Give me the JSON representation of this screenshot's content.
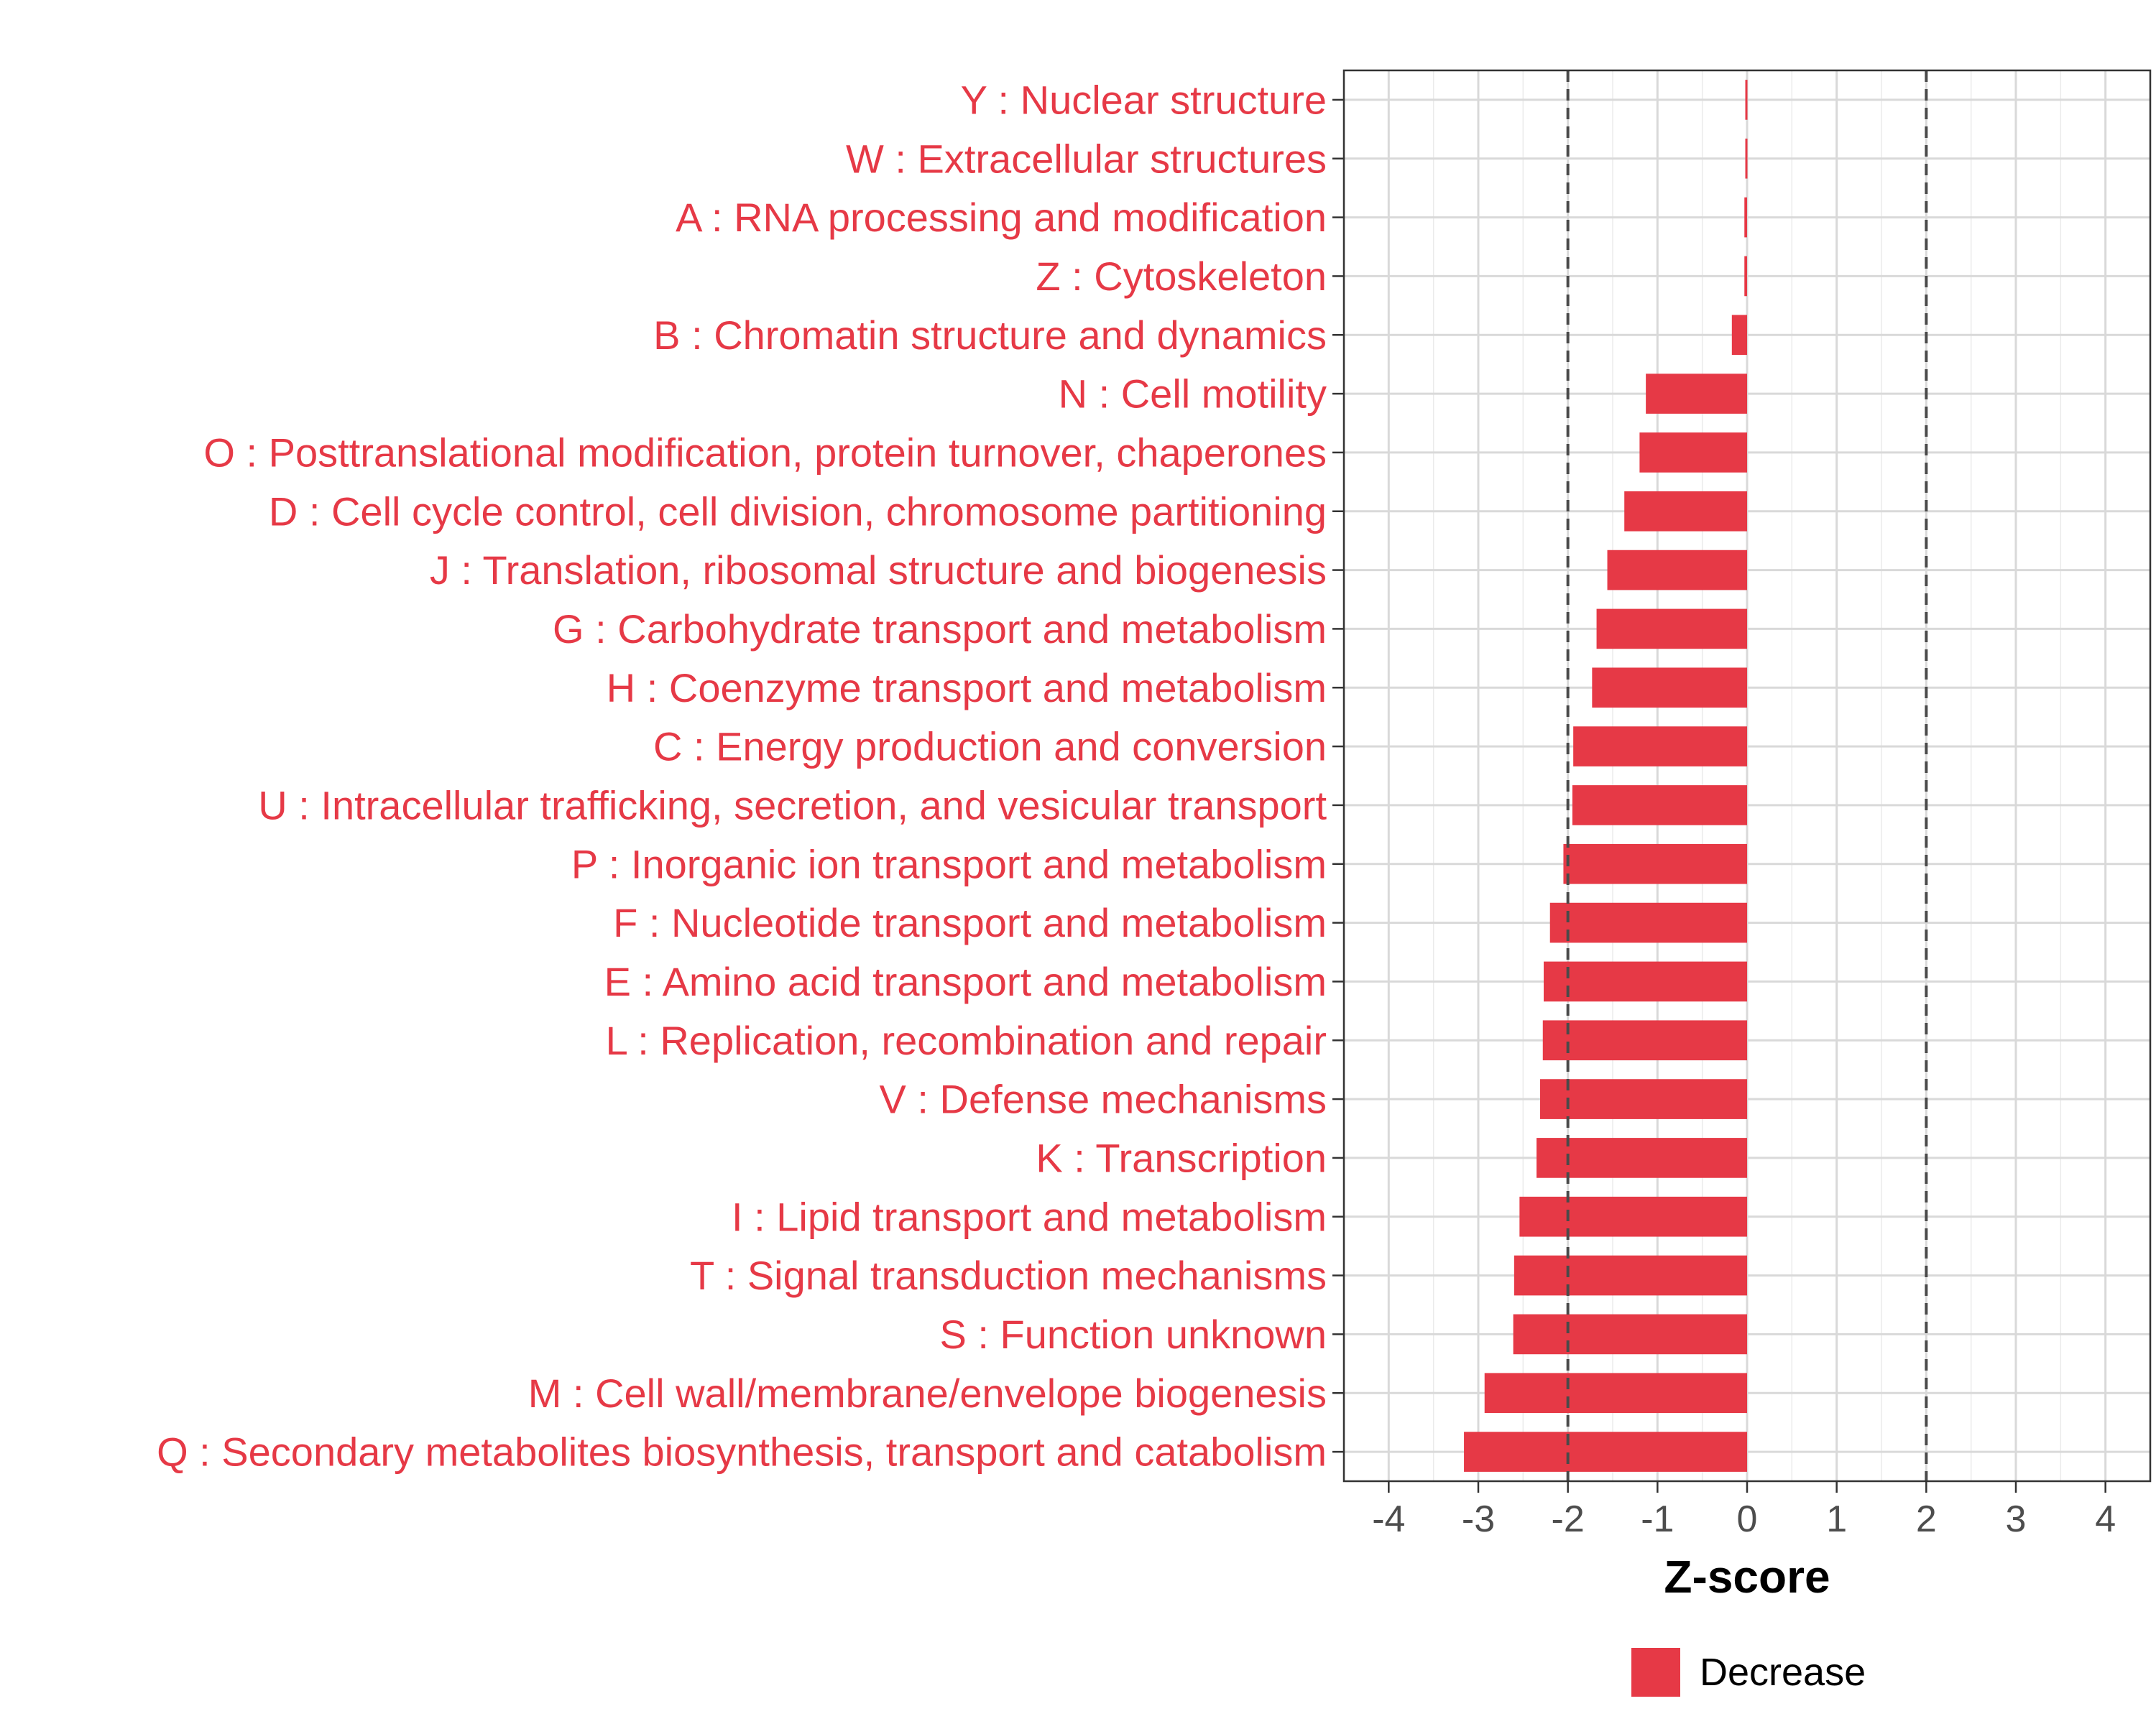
{
  "chart_data": {
    "type": "bar",
    "orientation": "horizontal",
    "categories": [
      "Y : Nuclear structure",
      "W : Extracellular structures",
      "A : RNA processing and modification",
      "Z : Cytoskeleton",
      "B : Chromatin structure and dynamics",
      "N : Cell motility",
      "O : Posttranslational modification, protein turnover, chaperones",
      "D : Cell cycle control, cell division, chromosome partitioning",
      "J : Translation, ribosomal structure and biogenesis",
      "G : Carbohydrate transport and metabolism",
      "H : Coenzyme transport and metabolism",
      "C : Energy production and conversion",
      "U : Intracellular trafficking, secretion, and vesicular transport",
      "P : Inorganic ion transport and metabolism",
      "F : Nucleotide transport and metabolism",
      "E : Amino acid transport and metabolism",
      "L : Replication, recombination and repair",
      "V : Defense mechanisms",
      "K : Transcription",
      "I : Lipid transport and metabolism",
      "T : Signal transduction mechanisms",
      "S : Function unknown",
      "M : Cell wall/membrane/envelope biogenesis",
      "Q : Secondary metabolites biosynthesis, transport and catabolism"
    ],
    "values": [
      -0.02,
      -0.02,
      -0.03,
      -0.03,
      -0.17,
      -1.13,
      -1.2,
      -1.37,
      -1.56,
      -1.68,
      -1.73,
      -1.94,
      -1.95,
      -2.05,
      -2.2,
      -2.27,
      -2.28,
      -2.31,
      -2.35,
      -2.54,
      -2.6,
      -2.61,
      -2.93,
      -3.16
    ],
    "xlabel": "Z-score",
    "ylabel": "",
    "xlim": [
      -4.5,
      4.5
    ],
    "xticks": [
      -4,
      -3,
      -2,
      -1,
      0,
      1,
      2,
      3,
      4
    ],
    "reference_lines": [
      -2,
      2
    ],
    "grid": true,
    "legend": {
      "placement": "bottom",
      "entries": [
        {
          "label": "Decrease",
          "color": "#e63946"
        }
      ]
    },
    "colors": {
      "bar": "#e63946",
      "label": "#e63946"
    }
  }
}
